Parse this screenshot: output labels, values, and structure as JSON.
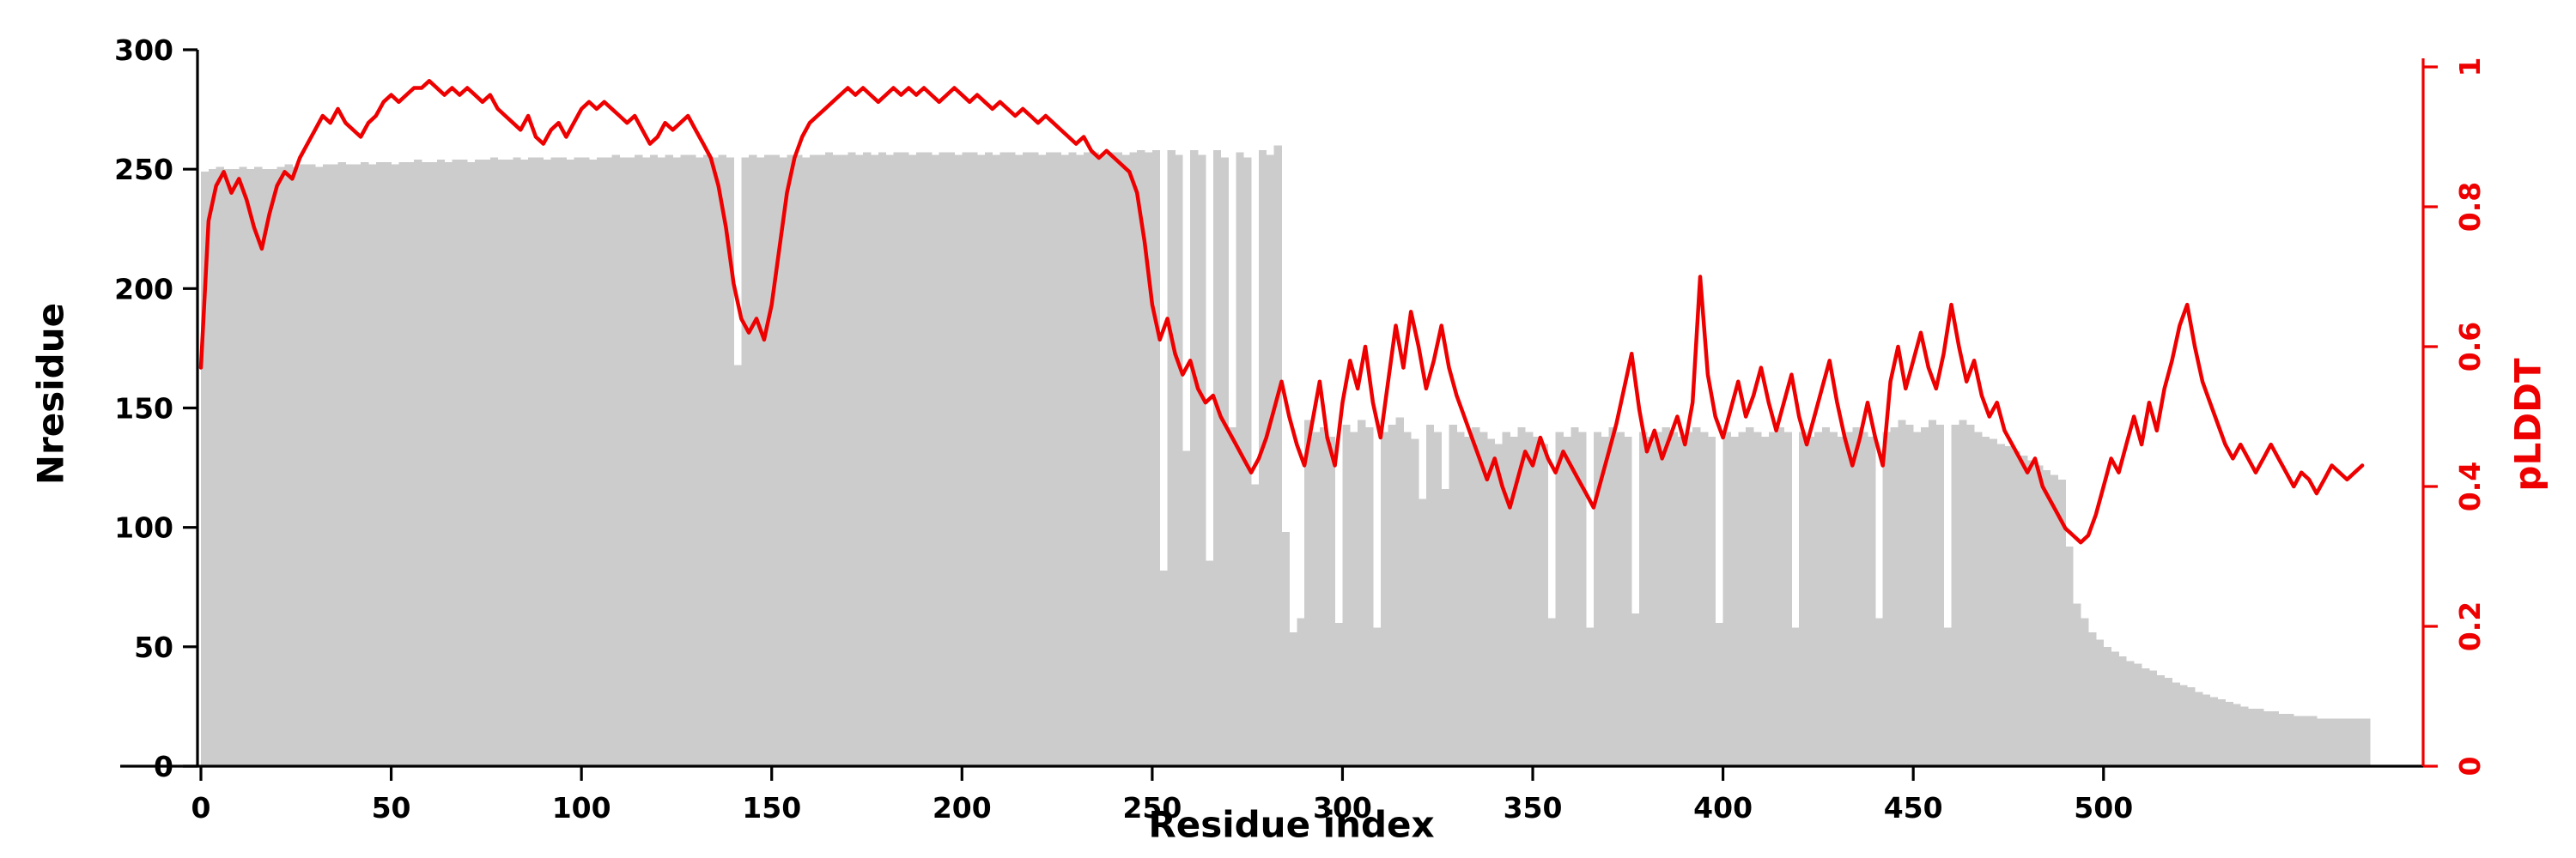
{
  "chart_data": {
    "type": "bar+line",
    "title": "",
    "xlabel": "Residue index",
    "ylabel_left": "Nresidue",
    "ylabel_right": "pLDDT",
    "grid": false,
    "legend": "none",
    "colors": {
      "background": "#ffffff",
      "bar": "#cccccc",
      "line": "#ee0000",
      "axis_left": "#000000",
      "axis_bottom": "#000000",
      "axis_right": "#ee0000"
    },
    "x_axis": {
      "range": [
        0,
        584
      ],
      "ticks": [
        0,
        50,
        100,
        150,
        200,
        250,
        300,
        350,
        400,
        450,
        500
      ]
    },
    "y_axis_left": {
      "range": [
        0,
        300
      ],
      "ticks": [
        0,
        50,
        100,
        150,
        200,
        250,
        300
      ]
    },
    "y_axis_right": {
      "range": [
        0,
        1
      ],
      "ticks": [
        0,
        0.2,
        0.4,
        0.6,
        0.8,
        1
      ],
      "tick_labels": [
        "0",
        "0.2",
        "0.4",
        "0.6",
        "0.8",
        "1"
      ]
    },
    "x_start": 0,
    "x_step": 2,
    "series": [
      {
        "name": "Nresidue",
        "type": "bar",
        "axis": "left",
        "color": "#cccccc",
        "values": [
          249,
          250,
          251,
          250,
          250,
          251,
          250,
          251,
          250,
          250,
          251,
          252,
          251,
          252,
          252,
          251,
          252,
          252,
          253,
          252,
          252,
          253,
          252,
          253,
          253,
          252,
          253,
          253,
          254,
          253,
          253,
          254,
          253,
          254,
          254,
          253,
          254,
          254,
          255,
          254,
          254,
          255,
          254,
          255,
          255,
          254,
          255,
          255,
          254,
          255,
          255,
          254,
          255,
          255,
          256,
          255,
          255,
          256,
          255,
          256,
          255,
          256,
          255,
          256,
          256,
          255,
          256,
          255,
          256,
          255,
          168,
          255,
          256,
          255,
          256,
          256,
          255,
          256,
          256,
          255,
          256,
          256,
          257,
          256,
          256,
          257,
          256,
          257,
          256,
          257,
          256,
          257,
          257,
          256,
          257,
          257,
          256,
          257,
          257,
          256,
          257,
          257,
          256,
          257,
          256,
          257,
          257,
          256,
          257,
          257,
          256,
          257,
          257,
          256,
          257,
          256,
          257,
          257,
          256,
          257,
          257,
          256,
          257,
          258,
          257,
          258,
          82,
          258,
          256,
          132,
          258,
          256,
          86,
          258,
          255,
          142,
          257,
          255,
          118,
          258,
          256,
          260,
          98,
          56,
          62,
          145,
          140,
          142,
          138,
          60,
          143,
          140,
          145,
          142,
          58,
          140,
          143,
          146,
          140,
          137,
          112,
          143,
          140,
          116,
          143,
          140,
          138,
          142,
          140,
          137,
          135,
          140,
          138,
          142,
          140,
          138,
          135,
          62,
          140,
          138,
          142,
          140,
          58,
          140,
          138,
          142,
          140,
          138,
          64,
          140,
          138,
          140,
          142,
          140,
          138,
          140,
          142,
          140,
          138,
          60,
          140,
          138,
          140,
          142,
          140,
          138,
          140,
          142,
          140,
          58,
          140,
          138,
          140,
          142,
          140,
          138,
          140,
          142,
          140,
          138,
          62,
          140,
          142,
          145,
          143,
          140,
          142,
          145,
          143,
          58,
          143,
          145,
          143,
          140,
          138,
          137,
          135,
          134,
          132,
          130,
          128,
          126,
          124,
          122,
          120,
          92,
          68,
          62,
          56,
          53,
          50,
          48,
          46,
          44,
          43,
          41,
          40,
          38,
          37,
          35,
          34,
          33,
          31,
          30,
          29,
          28,
          27,
          26,
          25,
          24,
          24,
          23,
          23,
          22,
          22,
          21,
          21,
          21,
          20,
          20,
          20,
          20,
          20,
          20,
          20
        ]
      },
      {
        "name": "pLDDT",
        "type": "line",
        "axis": "right",
        "color": "#ee0000",
        "values": [
          0.57,
          0.78,
          0.83,
          0.85,
          0.82,
          0.84,
          0.81,
          0.77,
          0.74,
          0.79,
          0.83,
          0.85,
          0.84,
          0.87,
          0.89,
          0.91,
          0.93,
          0.92,
          0.94,
          0.92,
          0.91,
          0.9,
          0.92,
          0.93,
          0.95,
          0.96,
          0.95,
          0.96,
          0.97,
          0.97,
          0.98,
          0.97,
          0.96,
          0.97,
          0.96,
          0.97,
          0.96,
          0.95,
          0.96,
          0.94,
          0.93,
          0.92,
          0.91,
          0.93,
          0.9,
          0.89,
          0.91,
          0.92,
          0.9,
          0.92,
          0.94,
          0.95,
          0.94,
          0.95,
          0.94,
          0.93,
          0.92,
          0.93,
          0.91,
          0.89,
          0.9,
          0.92,
          0.91,
          0.92,
          0.93,
          0.91,
          0.89,
          0.87,
          0.83,
          0.77,
          0.69,
          0.64,
          0.62,
          0.64,
          0.61,
          0.66,
          0.74,
          0.82,
          0.87,
          0.9,
          0.92,
          0.93,
          0.94,
          0.95,
          0.96,
          0.97,
          0.96,
          0.97,
          0.96,
          0.95,
          0.96,
          0.97,
          0.96,
          0.97,
          0.96,
          0.97,
          0.96,
          0.95,
          0.96,
          0.97,
          0.96,
          0.95,
          0.96,
          0.95,
          0.94,
          0.95,
          0.94,
          0.93,
          0.94,
          0.93,
          0.92,
          0.93,
          0.92,
          0.91,
          0.9,
          0.89,
          0.9,
          0.88,
          0.87,
          0.88,
          0.87,
          0.86,
          0.85,
          0.82,
          0.75,
          0.66,
          0.61,
          0.64,
          0.59,
          0.56,
          0.58,
          0.54,
          0.52,
          0.53,
          0.5,
          0.48,
          0.46,
          0.44,
          0.42,
          0.44,
          0.47,
          0.51,
          0.55,
          0.5,
          0.46,
          0.43,
          0.49,
          0.55,
          0.47,
          0.43,
          0.52,
          0.58,
          0.54,
          0.6,
          0.52,
          0.47,
          0.55,
          0.63,
          0.57,
          0.65,
          0.6,
          0.54,
          0.58,
          0.63,
          0.57,
          0.53,
          0.5,
          0.47,
          0.44,
          0.41,
          0.44,
          0.4,
          0.37,
          0.41,
          0.45,
          0.43,
          0.47,
          0.44,
          0.42,
          0.45,
          0.43,
          0.41,
          0.39,
          0.37,
          0.41,
          0.45,
          0.49,
          0.54,
          0.59,
          0.51,
          0.45,
          0.48,
          0.44,
          0.47,
          0.5,
          0.46,
          0.52,
          0.7,
          0.56,
          0.5,
          0.47,
          0.51,
          0.55,
          0.5,
          0.53,
          0.57,
          0.52,
          0.48,
          0.52,
          0.56,
          0.5,
          0.46,
          0.5,
          0.54,
          0.58,
          0.52,
          0.47,
          0.43,
          0.47,
          0.52,
          0.47,
          0.43,
          0.55,
          0.6,
          0.54,
          0.58,
          0.62,
          0.57,
          0.54,
          0.59,
          0.66,
          0.6,
          0.55,
          0.58,
          0.53,
          0.5,
          0.52,
          0.48,
          0.46,
          0.44,
          0.42,
          0.44,
          0.4,
          0.38,
          0.36,
          0.34,
          0.33,
          0.32,
          0.33,
          0.36,
          0.4,
          0.44,
          0.42,
          0.46,
          0.5,
          0.46,
          0.52,
          0.48,
          0.54,
          0.58,
          0.63,
          0.66,
          0.6,
          0.55,
          0.52,
          0.49,
          0.46,
          0.44,
          0.46,
          0.44,
          0.42,
          0.44,
          0.46,
          0.44,
          0.42,
          0.4,
          0.42,
          0.41,
          0.39,
          0.41,
          0.43,
          0.42,
          0.41,
          0.42,
          0.43
        ]
      }
    ]
  }
}
